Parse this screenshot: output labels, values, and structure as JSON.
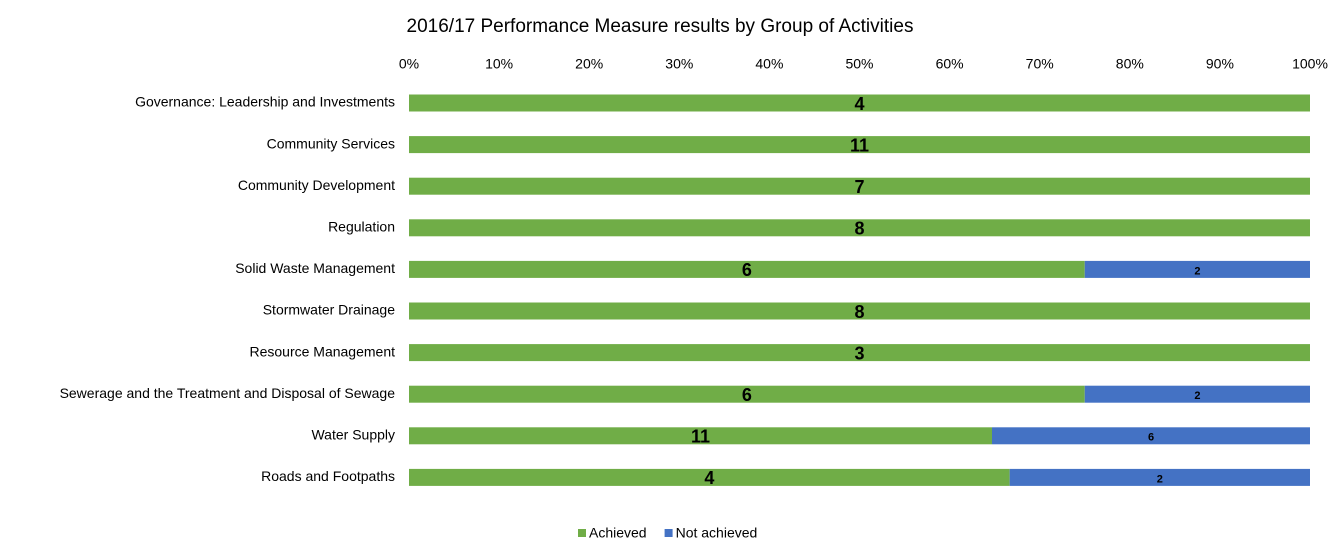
{
  "chart_data": {
    "type": "bar",
    "orientation": "horizontal",
    "stacking": "percent",
    "title": "2016/17 Performance Measure results by Group of Activities",
    "categories": [
      "Governance: Leadership and Investments",
      "Community Services",
      "Community Development",
      "Regulation",
      "Solid Waste Management",
      "Stormwater Drainage",
      "Resource Management",
      "Sewerage and the Treatment and Disposal of Sewage",
      "Water Supply",
      "Roads and Footpaths"
    ],
    "series": [
      {
        "name": "Achieved",
        "color": "#70ad47",
        "values": [
          4,
          11,
          7,
          8,
          6,
          8,
          3,
          6,
          11,
          4
        ]
      },
      {
        "name": "Not achieved",
        "color": "#4472c4",
        "values": [
          0,
          0,
          0,
          0,
          2,
          0,
          0,
          2,
          6,
          2
        ]
      }
    ],
    "xlim": [
      0,
      100
    ],
    "xticks": [
      {
        "value": 0,
        "label": "0%"
      },
      {
        "value": 10,
        "label": "10%"
      },
      {
        "value": 20,
        "label": "20%"
      },
      {
        "value": 30,
        "label": "30%"
      },
      {
        "value": 40,
        "label": "40%"
      },
      {
        "value": 50,
        "label": "50%"
      },
      {
        "value": 60,
        "label": "60%"
      },
      {
        "value": 70,
        "label": "70%"
      },
      {
        "value": 80,
        "label": "80%"
      },
      {
        "value": 90,
        "label": "90%"
      },
      {
        "value": 100,
        "label": "100%"
      }
    ],
    "grid": false,
    "legend": "bottom"
  }
}
